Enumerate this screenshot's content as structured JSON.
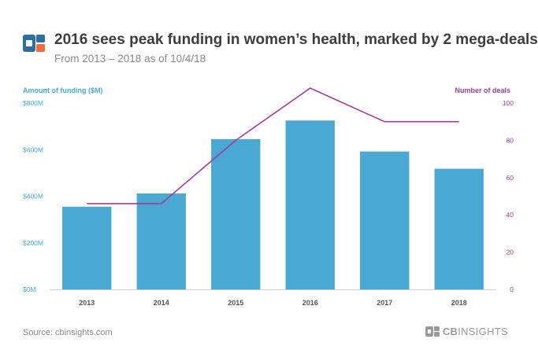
{
  "header": {
    "title": "2016 sees peak funding in women’s health, marked by 2 mega-deals",
    "subtitle": "From 2013 – 2018 as of 10/4/18"
  },
  "footer": {
    "source": "Source: cbinsights.com",
    "brand_prefix": "CB",
    "brand_suffix": "INSIGHTS"
  },
  "colors": {
    "bar": "#4aa9d3",
    "line": "#a23c9a",
    "logo_blue": "#2d6e9e",
    "logo_orange": "#f26b3a"
  },
  "chart_data": {
    "type": "bar",
    "title": "2016 sees peak funding in women’s health, marked by 2 mega-deals",
    "subtitle": "From 2013 – 2018 as of 10/4/18",
    "categories": [
      "2013",
      "2014",
      "2015",
      "2016",
      "2017",
      "2018"
    ],
    "series": [
      {
        "name": "Amount of funding ($M)",
        "type": "bar",
        "axis": "left",
        "values": [
          355,
          412,
          645,
          725,
          592,
          518
        ]
      },
      {
        "name": "Number of deals",
        "type": "line",
        "axis": "right",
        "values": [
          46,
          46,
          80,
          108,
          90,
          90
        ]
      }
    ],
    "ylabel": "Amount of funding ($M)",
    "ylabel_right": "Number of deals",
    "ylim": [
      0,
      800
    ],
    "ylim_right": [
      0,
      100
    ],
    "yticks_left": [
      "$0M",
      "$200M",
      "$400M",
      "$600M",
      "$800M"
    ],
    "yticks_right": [
      "0",
      "20",
      "40",
      "60",
      "80",
      "100"
    ],
    "grid": false,
    "legend": "none"
  }
}
